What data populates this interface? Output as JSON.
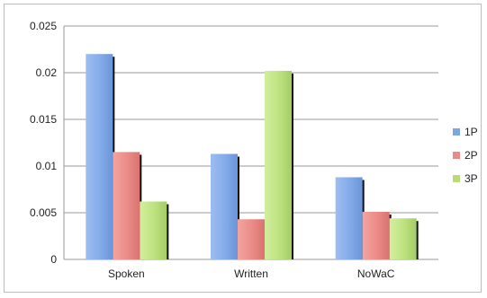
{
  "chart_data": {
    "type": "bar",
    "title": "",
    "xlabel": "",
    "ylabel": "",
    "categories": [
      "Spoken",
      "Written",
      "NoWaC"
    ],
    "series": [
      {
        "name": "1P",
        "values": [
          0.022,
          0.0113,
          0.0088
        ],
        "color": "#7ea6e0"
      },
      {
        "name": "2P",
        "values": [
          0.0115,
          0.0043,
          0.0051
        ],
        "color": "#e98a86"
      },
      {
        "name": "3P",
        "values": [
          0.0062,
          0.0202,
          0.0044
        ],
        "color": "#b8dc76"
      }
    ],
    "ylim": [
      0,
      0.025
    ],
    "yticks": [
      "0",
      "0.005",
      "0.01",
      "0.015",
      "0.02",
      "0.025"
    ],
    "ytick_values": [
      0,
      0.005,
      0.01,
      0.015,
      0.02,
      0.025
    ],
    "grid": true,
    "legend_position": "right"
  }
}
